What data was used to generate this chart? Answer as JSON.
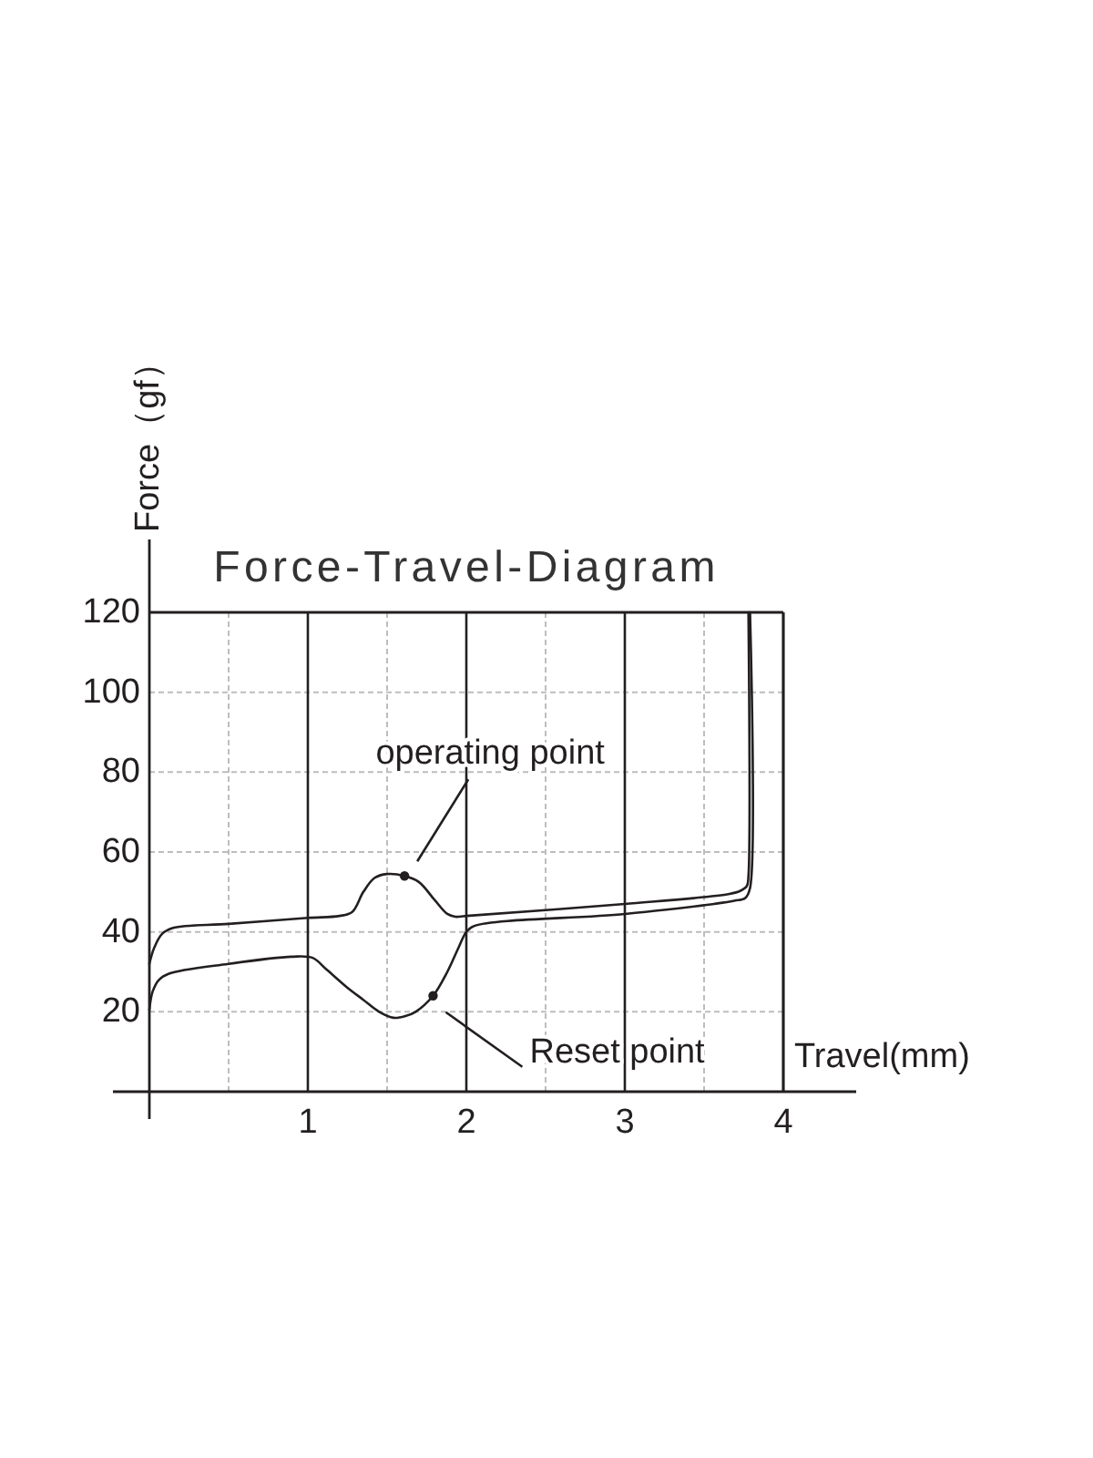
{
  "chart_data": {
    "type": "line",
    "title": "Force-Travel-Diagram",
    "xlabel": "Travel(mm)",
    "ylabel": "Force（gf）",
    "series": [
      {
        "color": "#231f20",
        "x": [
          0,
          0.03,
          0.08,
          0.15,
          0.5,
          1.0,
          1.2,
          1.28,
          1.35,
          1.42,
          1.5,
          1.61,
          1.7,
          1.8,
          1.88,
          1.93,
          2.0,
          3.0,
          3.66,
          3.73,
          3.77,
          3.78,
          3.78
        ],
        "values": [
          32,
          36,
          39.5,
          41,
          42,
          43.5,
          44,
          45,
          50,
          53.5,
          54.5,
          54,
          52.5,
          48,
          44.5,
          43.8,
          44,
          47,
          49.5,
          50.3,
          51.5,
          54,
          120
        ]
      },
      {
        "color": "#231f20",
        "x": [
          0,
          0.02,
          0.06,
          0.12,
          0.5,
          0.9,
          1.03,
          1.12,
          1.25,
          1.35,
          1.45,
          1.54,
          1.62,
          1.68,
          1.79,
          1.88,
          1.95,
          2.0,
          2.05,
          3.0,
          3.69,
          3.76,
          3.79,
          3.79
        ],
        "values": [
          20.5,
          25,
          28,
          29.5,
          32,
          33.8,
          33.5,
          30.5,
          26,
          23,
          20,
          18.5,
          19,
          20,
          24,
          30,
          36,
          40,
          41.5,
          44.5,
          47.8,
          48.5,
          51,
          120
        ]
      }
    ],
    "xlim": [
      0,
      4
    ],
    "ylim": [
      0,
      120
    ],
    "xticks": [
      {
        "value": 0,
        "label": null
      },
      {
        "value": 0.5,
        "label": null
      },
      1,
      {
        "value": 1.5,
        "label": null
      },
      2,
      {
        "value": 2.5,
        "label": null
      },
      3,
      {
        "value": 3.5,
        "label": null
      },
      4
    ],
    "yticks": [
      20,
      40,
      60,
      80,
      100,
      120
    ],
    "grid": true,
    "line_style": "solid",
    "annotations": [
      {
        "text": "operating point",
        "x": 1.61,
        "y": 54
      },
      {
        "text": "Reset point",
        "x": 1.79,
        "y": 24
      }
    ]
  }
}
